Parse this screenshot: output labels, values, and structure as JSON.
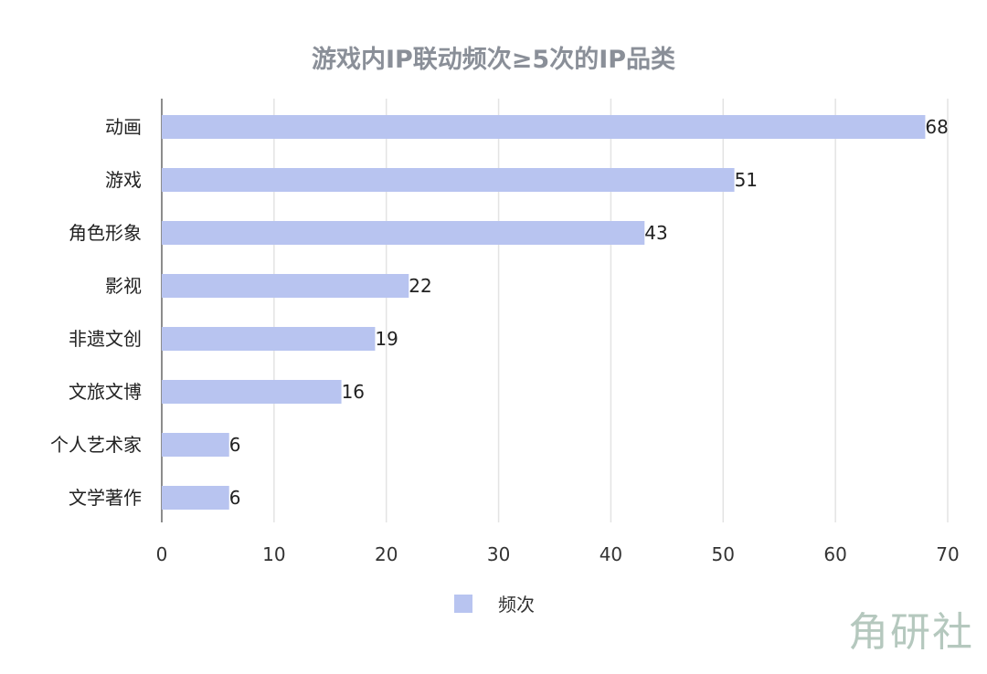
{
  "chart_data": {
    "type": "bar",
    "orientation": "horizontal",
    "title": "游戏内IP联动频次≥5次的IP品类",
    "categories": [
      "动画",
      "游戏",
      "角色形象",
      "影视",
      "非遗文创",
      "文旅文博",
      "个人艺术家",
      "文学著作"
    ],
    "series": [
      {
        "name": "频次",
        "values": [
          68,
          51,
          43,
          22,
          19,
          16,
          6,
          6
        ],
        "color": "#b8c4f0"
      }
    ],
    "xlim": [
      0,
      70
    ],
    "xticks": [
      0,
      10,
      20,
      30,
      40,
      50,
      60,
      70
    ],
    "grid": true,
    "legend": "bottom"
  },
  "watermark": "角研社"
}
